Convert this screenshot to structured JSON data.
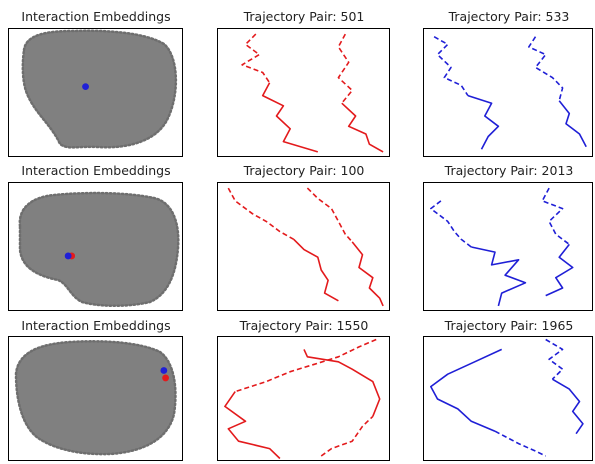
{
  "colors": {
    "cloud": "#808080",
    "red": "#e31a1c",
    "blue": "#1f1fd6"
  },
  "chart_data": [
    {
      "type": "scatter",
      "title": "Interaction Embeddings",
      "blob": "cloud1",
      "highlights": [
        {
          "color": "blue",
          "x": 0.44,
          "y": 0.55
        }
      ]
    },
    {
      "type": "line",
      "title": "Trajectory Pair: 501",
      "color": "red",
      "trajectories": [
        {
          "observed": [
            [
              0.22,
              0.96
            ],
            [
              0.16,
              0.88
            ],
            [
              0.24,
              0.8
            ],
            [
              0.14,
              0.72
            ],
            [
              0.26,
              0.66
            ],
            [
              0.3,
              0.58
            ]
          ],
          "predicted": [
            [
              0.3,
              0.58
            ],
            [
              0.26,
              0.48
            ],
            [
              0.38,
              0.4
            ],
            [
              0.34,
              0.32
            ],
            [
              0.42,
              0.22
            ],
            [
              0.38,
              0.12
            ],
            [
              0.58,
              0.04
            ]
          ]
        },
        {
          "observed": [
            [
              0.74,
              0.96
            ],
            [
              0.7,
              0.86
            ],
            [
              0.76,
              0.74
            ],
            [
              0.7,
              0.62
            ],
            [
              0.78,
              0.52
            ],
            [
              0.72,
              0.42
            ]
          ],
          "predicted": [
            [
              0.72,
              0.42
            ],
            [
              0.8,
              0.32
            ],
            [
              0.76,
              0.24
            ],
            [
              0.86,
              0.18
            ],
            [
              0.88,
              0.1
            ],
            [
              0.96,
              0.04
            ]
          ]
        }
      ]
    },
    {
      "type": "line",
      "title": "Trajectory Pair: 533",
      "color": "blue",
      "trajectories": [
        {
          "observed": [
            [
              0.06,
              0.94
            ],
            [
              0.14,
              0.88
            ],
            [
              0.08,
              0.8
            ],
            [
              0.16,
              0.7
            ],
            [
              0.12,
              0.62
            ],
            [
              0.22,
              0.56
            ],
            [
              0.26,
              0.48
            ]
          ],
          "predicted": [
            [
              0.26,
              0.48
            ],
            [
              0.4,
              0.42
            ],
            [
              0.36,
              0.32
            ],
            [
              0.44,
              0.24
            ],
            [
              0.38,
              0.16
            ],
            [
              0.34,
              0.06
            ]
          ]
        },
        {
          "observed": [
            [
              0.66,
              0.94
            ],
            [
              0.62,
              0.86
            ],
            [
              0.72,
              0.8
            ],
            [
              0.66,
              0.7
            ],
            [
              0.76,
              0.62
            ],
            [
              0.82,
              0.54
            ],
            [
              0.8,
              0.44
            ]
          ],
          "predicted": [
            [
              0.8,
              0.44
            ],
            [
              0.86,
              0.34
            ],
            [
              0.84,
              0.26
            ],
            [
              0.92,
              0.18
            ],
            [
              0.96,
              0.08
            ]
          ]
        }
      ]
    },
    {
      "type": "scatter",
      "title": "Interaction Embeddings",
      "blob": "cloud2",
      "highlights": [
        {
          "color": "red",
          "x": 0.36,
          "y": 0.43
        },
        {
          "color": "blue",
          "x": 0.34,
          "y": 0.43
        }
      ]
    },
    {
      "type": "line",
      "title": "Trajectory Pair: 100",
      "color": "red",
      "trajectories": [
        {
          "observed": [
            [
              0.06,
              0.96
            ],
            [
              0.1,
              0.86
            ],
            [
              0.2,
              0.76
            ],
            [
              0.28,
              0.7
            ],
            [
              0.36,
              0.62
            ],
            [
              0.44,
              0.56
            ]
          ],
          "predicted": [
            [
              0.44,
              0.56
            ],
            [
              0.5,
              0.48
            ],
            [
              0.58,
              0.42
            ],
            [
              0.6,
              0.32
            ],
            [
              0.64,
              0.24
            ],
            [
              0.62,
              0.14
            ],
            [
              0.7,
              0.08
            ]
          ]
        },
        {
          "observed": [
            [
              0.52,
              0.96
            ],
            [
              0.58,
              0.88
            ],
            [
              0.66,
              0.8
            ],
            [
              0.7,
              0.7
            ],
            [
              0.74,
              0.6
            ],
            [
              0.78,
              0.54
            ]
          ],
          "predicted": [
            [
              0.78,
              0.54
            ],
            [
              0.84,
              0.44
            ],
            [
              0.82,
              0.34
            ],
            [
              0.9,
              0.26
            ],
            [
              0.88,
              0.18
            ],
            [
              0.94,
              0.1
            ],
            [
              0.96,
              0.04
            ]
          ]
        }
      ]
    },
    {
      "type": "line",
      "title": "Trajectory Pair: 2013",
      "color": "blue",
      "trajectories": [
        {
          "observed": [
            [
              0.1,
              0.86
            ],
            [
              0.04,
              0.8
            ],
            [
              0.14,
              0.7
            ],
            [
              0.18,
              0.62
            ],
            [
              0.22,
              0.56
            ],
            [
              0.28,
              0.5
            ]
          ],
          "predicted": [
            [
              0.28,
              0.5
            ],
            [
              0.42,
              0.46
            ],
            [
              0.4,
              0.36
            ],
            [
              0.56,
              0.4
            ],
            [
              0.48,
              0.28
            ],
            [
              0.6,
              0.22
            ],
            [
              0.46,
              0.14
            ],
            [
              0.44,
              0.04
            ]
          ]
        },
        {
          "observed": [
            [
              0.74,
              0.96
            ],
            [
              0.7,
              0.86
            ],
            [
              0.82,
              0.8
            ],
            [
              0.74,
              0.7
            ],
            [
              0.78,
              0.6
            ],
            [
              0.86,
              0.52
            ]
          ],
          "predicted": [
            [
              0.86,
              0.52
            ],
            [
              0.8,
              0.42
            ],
            [
              0.88,
              0.34
            ],
            [
              0.78,
              0.26
            ],
            [
              0.82,
              0.18
            ],
            [
              0.72,
              0.12
            ]
          ]
        }
      ]
    },
    {
      "type": "scatter",
      "title": "Interaction Embeddings",
      "blob": "cloud3",
      "highlights": [
        {
          "color": "red",
          "x": 0.9,
          "y": 0.67
        },
        {
          "color": "blue",
          "x": 0.89,
          "y": 0.73
        }
      ]
    },
    {
      "type": "line",
      "title": "Trajectory Pair: 1550",
      "color": "red",
      "trajectories": [
        {
          "observed": [
            [
              0.92,
              0.98
            ],
            [
              0.82,
              0.92
            ],
            [
              0.7,
              0.84
            ],
            [
              0.56,
              0.78
            ],
            [
              0.42,
              0.72
            ],
            [
              0.28,
              0.64
            ],
            [
              0.1,
              0.56
            ]
          ],
          "predicted": [
            [
              0.1,
              0.56
            ],
            [
              0.04,
              0.44
            ],
            [
              0.16,
              0.32
            ],
            [
              0.06,
              0.26
            ],
            [
              0.12,
              0.16
            ],
            [
              0.3,
              0.1
            ],
            [
              0.36,
              0.02
            ]
          ]
        },
        {
          "observed": [
            [
              0.6,
              0.04
            ],
            [
              0.66,
              0.1
            ],
            [
              0.78,
              0.16
            ],
            [
              0.84,
              0.28
            ],
            [
              0.9,
              0.36
            ]
          ],
          "predicted": [
            [
              0.9,
              0.36
            ],
            [
              0.94,
              0.5
            ],
            [
              0.9,
              0.64
            ],
            [
              0.78,
              0.74
            ],
            [
              0.7,
              0.8
            ],
            [
              0.52,
              0.84
            ],
            [
              0.5,
              0.9
            ]
          ]
        }
      ]
    },
    {
      "type": "line",
      "title": "Trajectory Pair: 1965",
      "color": "blue",
      "trajectories": [
        {
          "observed": [
            [
              0.42,
              0.24
            ],
            [
              0.56,
              0.14
            ],
            [
              0.66,
              0.08
            ],
            [
              0.72,
              0.04
            ]
          ],
          "predicted": [
            [
              0.42,
              0.24
            ],
            [
              0.28,
              0.32
            ],
            [
              0.2,
              0.42
            ],
            [
              0.08,
              0.5
            ],
            [
              0.04,
              0.6
            ],
            [
              0.14,
              0.7
            ],
            [
              0.3,
              0.8
            ],
            [
              0.46,
              0.9
            ]
          ]
        },
        {
          "observed": [
            [
              0.72,
              0.98
            ],
            [
              0.82,
              0.9
            ],
            [
              0.74,
              0.82
            ],
            [
              0.82,
              0.74
            ],
            [
              0.76,
              0.66
            ]
          ],
          "predicted": [
            [
              0.76,
              0.66
            ],
            [
              0.86,
              0.58
            ],
            [
              0.92,
              0.48
            ],
            [
              0.88,
              0.4
            ],
            [
              0.94,
              0.3
            ],
            [
              0.9,
              0.22
            ]
          ]
        }
      ]
    }
  ]
}
